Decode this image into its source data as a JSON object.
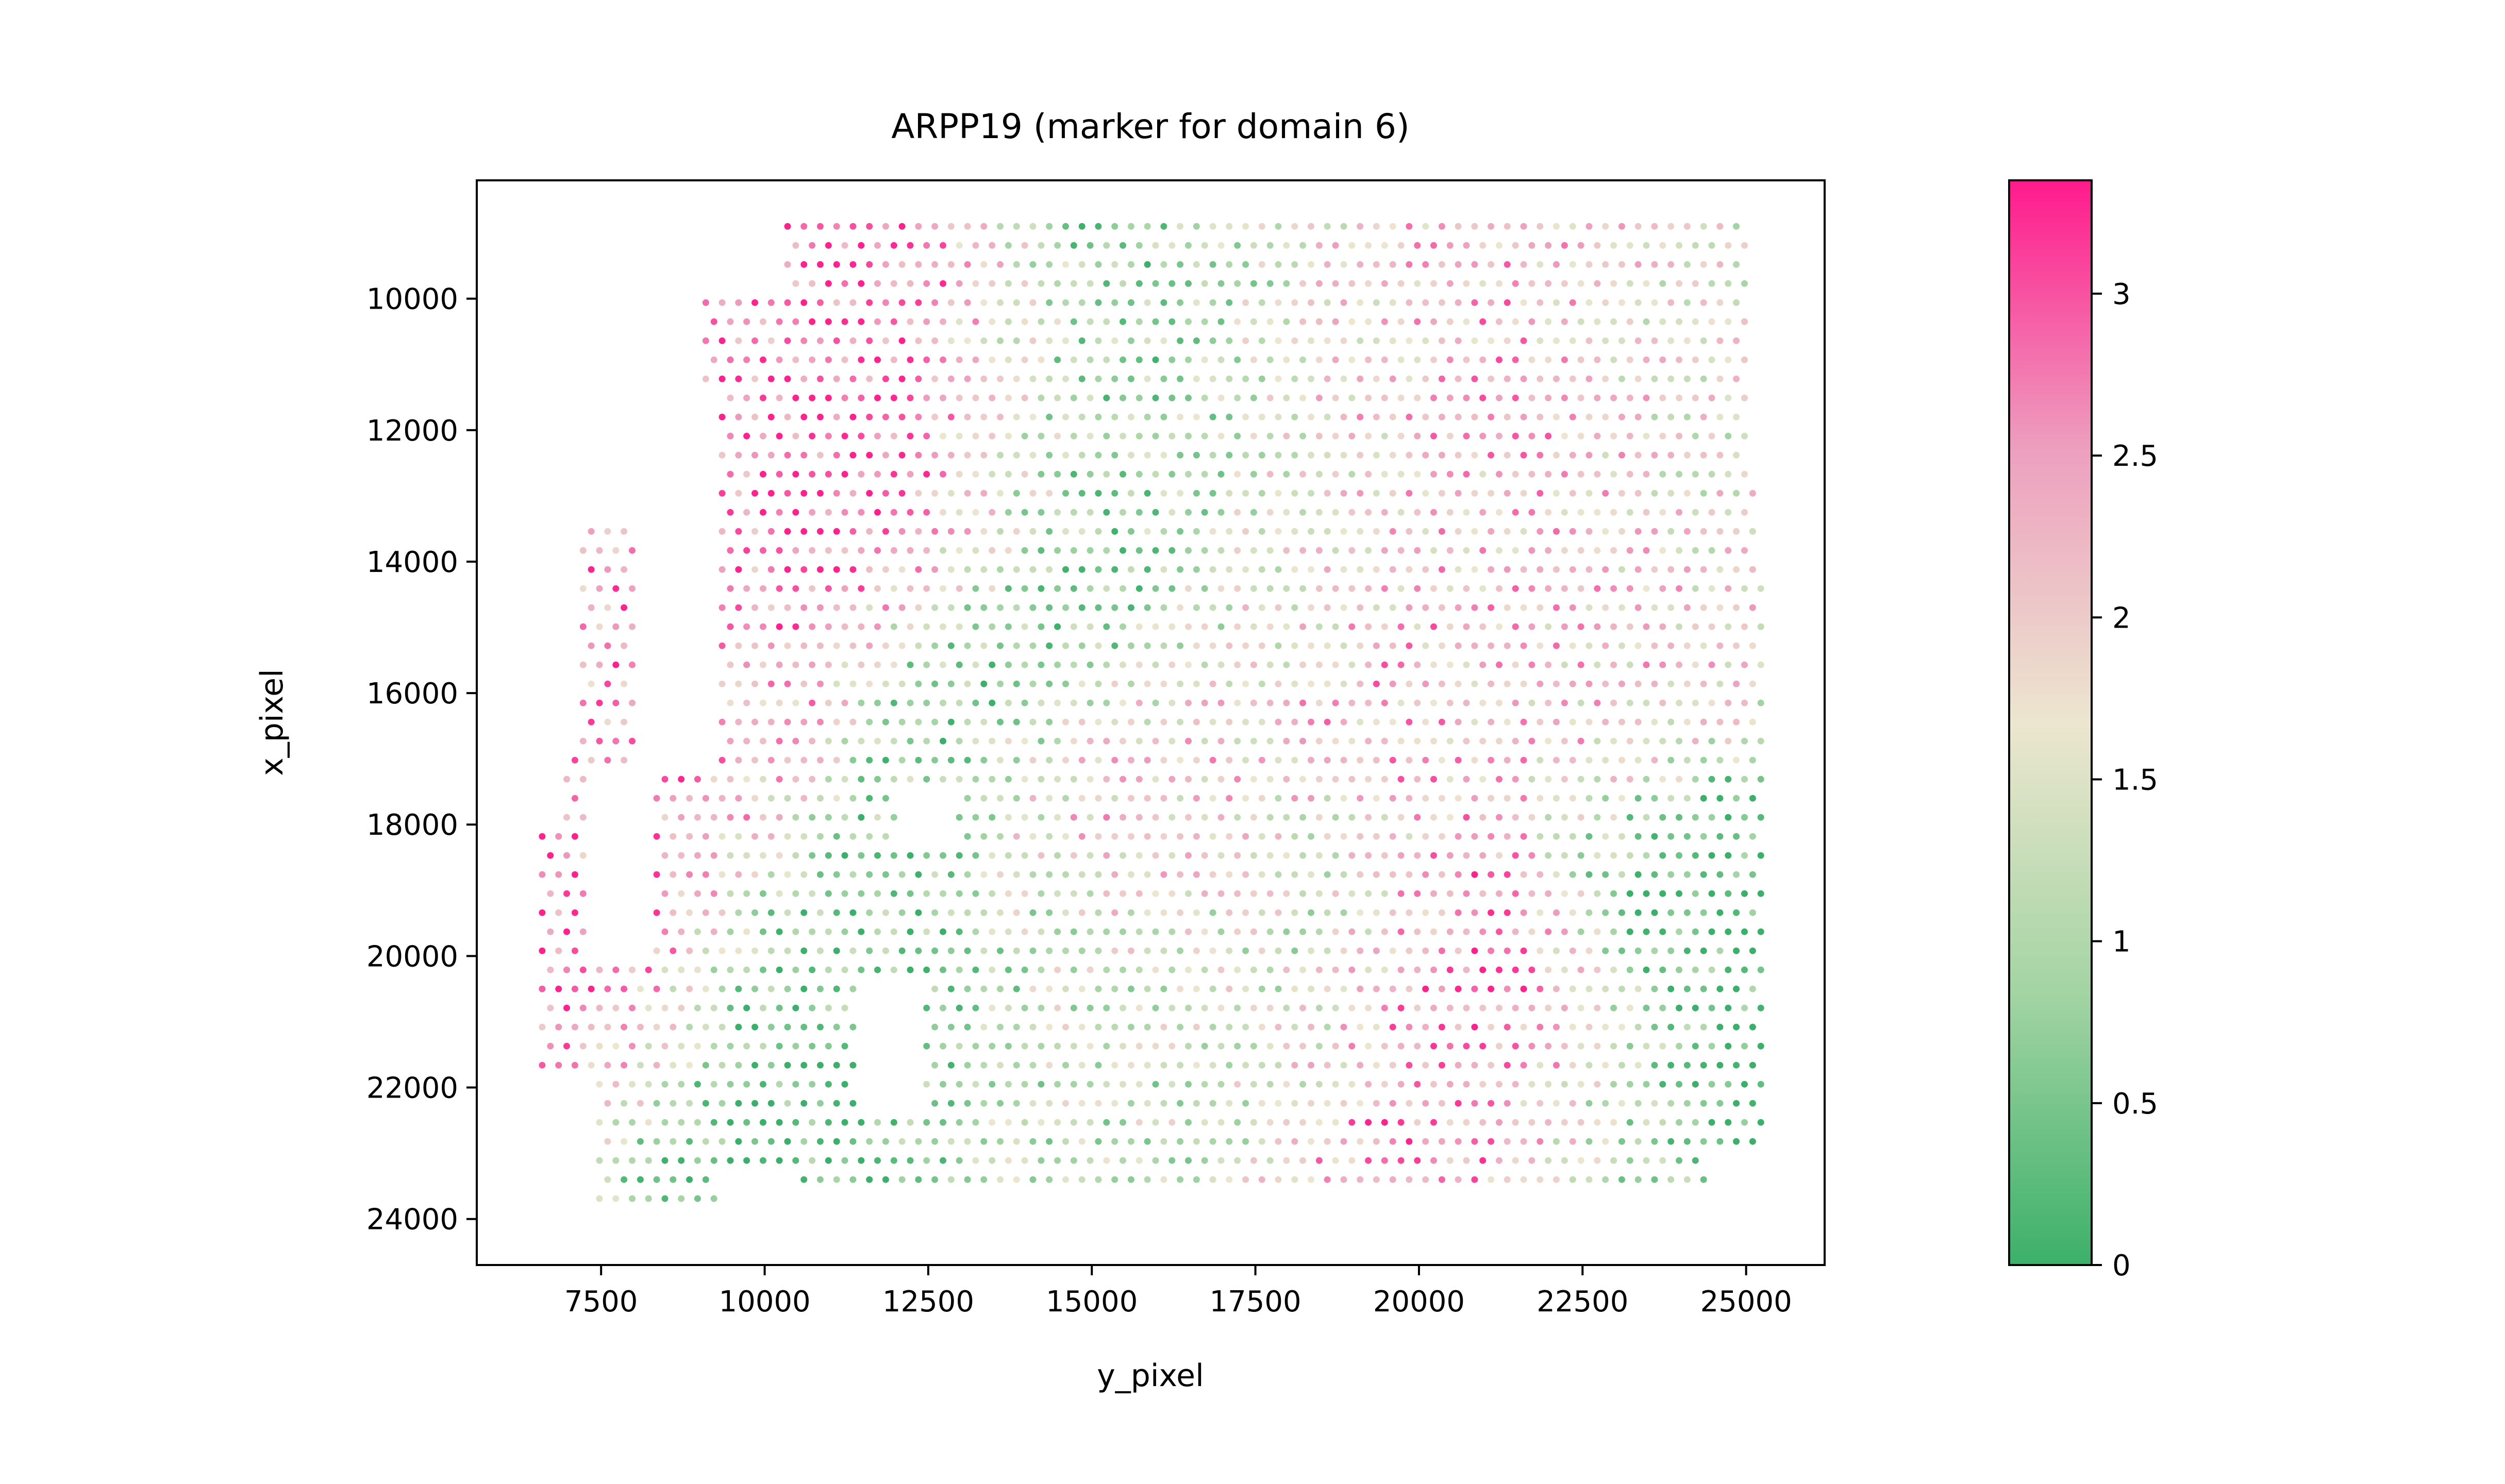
{
  "chart_data": {
    "type": "scatter",
    "title": "ARPP19 (marker for domain 6)",
    "xlabel": "y_pixel",
    "ylabel": "x_pixel",
    "xlim": [
      5600,
      26200
    ],
    "ylim": [
      24700,
      8200
    ],
    "y_inverted": true,
    "x_ticks": [
      7500,
      10000,
      12500,
      15000,
      17500,
      20000,
      22500,
      25000
    ],
    "x_tick_labels": [
      "7500",
      "10000",
      "12500",
      "15000",
      "17500",
      "20000",
      "22500",
      "25000"
    ],
    "y_ticks": [
      10000,
      12000,
      14000,
      16000,
      18000,
      20000,
      22000,
      24000
    ],
    "y_tick_labels": [
      "10000",
      "12000",
      "14000",
      "16000",
      "18000",
      "20000",
      "22000",
      "24000"
    ],
    "colorbar": {
      "min": 0,
      "max": 3.35,
      "ticks": [
        0,
        0.5,
        1,
        1.5,
        2,
        2.5,
        3
      ],
      "tick_labels": [
        "0",
        "0.5",
        "1",
        "1.5",
        "2",
        "2.5",
        "3"
      ],
      "colors": [
        "#3cb06a",
        "#a3d4a3",
        "#ece6cf",
        "#eda0bf",
        "#ff1a8c"
      ]
    },
    "grid": false,
    "legend": "none",
    "spot_lattice": {
      "x_step": 250,
      "y_step": 290,
      "x_range": [
        6600,
        25300
      ],
      "y_range": [
        8900,
        23900
      ]
    },
    "expression_regions": [
      {
        "x": 12700,
        "y": 12000,
        "level": 3.0
      },
      {
        "x": 11600,
        "y": 12900,
        "level": 2.9
      },
      {
        "x": 14500,
        "y": 12300,
        "level": 0.3
      },
      {
        "x": 13900,
        "y": 15300,
        "level": 0.4
      },
      {
        "x": 12000,
        "y": 19500,
        "level": 0.6
      },
      {
        "x": 9200,
        "y": 12800,
        "level": 2.6
      },
      {
        "x": 8500,
        "y": 16500,
        "level": 2.5
      },
      {
        "x": 7200,
        "y": 19500,
        "level": 2.7
      },
      {
        "x": 10800,
        "y": 21400,
        "level": 0.3
      },
      {
        "x": 15500,
        "y": 17500,
        "level": 2.2
      },
      {
        "x": 16800,
        "y": 10500,
        "level": 0.5
      },
      {
        "x": 18500,
        "y": 11000,
        "level": 2.4
      },
      {
        "x": 21500,
        "y": 11500,
        "level": 2.3
      },
      {
        "x": 24500,
        "y": 11500,
        "level": 1.6
      },
      {
        "x": 20000,
        "y": 15000,
        "level": 2.4
      },
      {
        "x": 22500,
        "y": 15500,
        "level": 2.0
      },
      {
        "x": 24500,
        "y": 19500,
        "level": 0.2
      },
      {
        "x": 23500,
        "y": 22800,
        "level": 0.4
      },
      {
        "x": 21000,
        "y": 20900,
        "level": 2.9
      },
      {
        "x": 21000,
        "y": 23300,
        "level": 2.6
      },
      {
        "x": 17500,
        "y": 20000,
        "level": 1.3
      },
      {
        "x": 14500,
        "y": 21500,
        "level": 1.2
      },
      {
        "x": 18000,
        "y": 13500,
        "level": 1.4
      },
      {
        "x": 16000,
        "y": 12000,
        "level": 1.0
      }
    ],
    "excluded_regions": [
      {
        "x_range": [
          8000,
          9300
        ],
        "y_range": [
          11300,
          17300
        ]
      },
      {
        "x_range": [
          7300,
          8300
        ],
        "y_range": [
          17200,
          20200
        ]
      },
      {
        "x_range": [
          12000,
          12900
        ],
        "y_range": [
          17400,
          18200
        ]
      },
      {
        "x_range": [
          11400,
          12400
        ],
        "y_range": [
          20400,
          22400
        ]
      },
      {
        "x_range": [
          6500,
          10300
        ],
        "y_range": [
          8700,
          9900
        ]
      },
      {
        "x_range": [
          6500,
          9000
        ],
        "y_range": [
          9900,
          11300
        ]
      },
      {
        "x_range": [
          6500,
          8600
        ],
        "y_range": [
          11300,
          13500
        ]
      },
      {
        "x_range": [
          6500,
          7200
        ],
        "y_range": [
          13500,
          16800
        ]
      },
      {
        "x_range": [
          6500,
          6900
        ],
        "y_range": [
          16800,
          18000
        ]
      },
      {
        "x_range": [
          25000,
          25400
        ],
        "y_range": [
          8700,
          12600
        ]
      },
      {
        "x_range": [
          25200,
          25400
        ],
        "y_range": [
          12600,
          14100
        ]
      },
      {
        "x_range": [
          6500,
          7400
        ],
        "y_range": [
          21700,
          24100
        ]
      },
      {
        "x_range": [
          9300,
          10500
        ],
        "y_range": [
          23200,
          24100
        ]
      },
      {
        "x_range": [
          10500,
          25400
        ],
        "y_range": [
          23500,
          24100
        ]
      },
      {
        "x_range": [
          24400,
          25400
        ],
        "y_range": [
          23100,
          24100
        ]
      }
    ]
  }
}
